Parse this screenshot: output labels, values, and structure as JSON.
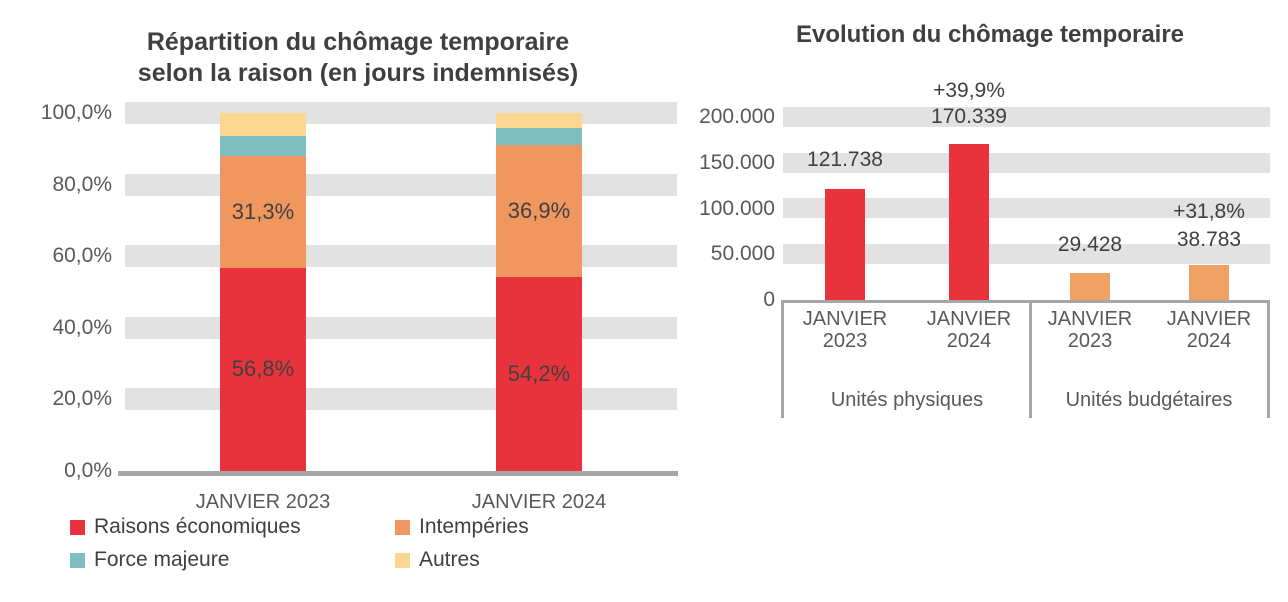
{
  "colors": {
    "red": "#E8323C",
    "orange": "#F0965F",
    "teal": "#7FBEBE",
    "yellow": "#FCD78F",
    "right_orange": "#F0A264",
    "grid_band": "#E2E2E2",
    "axis_gray": "#A6A6A6",
    "title_text": "#3F3F3F",
    "tick_text": "#595959"
  },
  "left_chart": {
    "title_line1": "Répartition du chômage temporaire",
    "title_line2": "selon la raison (en jours indemnisés)",
    "y_ticks": [
      "100,0%",
      "80,0%",
      "60,0%",
      "40,0%",
      "20,0%",
      "0,0%"
    ],
    "x_labels": [
      "JANVIER 2023",
      "JANVIER 2024"
    ],
    "bar_labels": [
      [
        "56,8%",
        "31,3%"
      ],
      [
        "54,2%",
        "36,9%"
      ]
    ],
    "legend": [
      {
        "label": "Raisons économiques",
        "color": "#E8323C"
      },
      {
        "label": "Intempéries",
        "color": "#F0965F"
      },
      {
        "label": "Force majeure",
        "color": "#7FBEBE"
      },
      {
        "label": "Autres",
        "color": "#FCD78F"
      }
    ]
  },
  "right_chart": {
    "title": "Evolution du chômage temporaire",
    "y_ticks": [
      "200.000",
      "150.000",
      "100.000",
      "50.000",
      "0"
    ],
    "labels": {
      "value_2023_phys": "121.738",
      "pct_phys": "+39,9%",
      "value_2024_phys": "170.339",
      "value_2023_budg": "29.428",
      "pct_budg": "+31,8%",
      "value_2024_budg": "38.783"
    },
    "cats": [
      "JANVIER 2023",
      "JANVIER 2024",
      "JANVIER 2023",
      "JANVIER 2024"
    ],
    "group_labels": [
      "Unités physiques",
      "Unités budgétaires"
    ]
  },
  "chart_data": [
    {
      "type": "bar",
      "subtype": "stacked-100-percent",
      "title": "Répartition du chômage temporaire selon la raison (en jours indemnisés)",
      "categories": [
        "JANVIER 2023",
        "JANVIER 2024"
      ],
      "series": [
        {
          "name": "Raisons économiques",
          "color": "#E8323C",
          "values": [
            56.8,
            54.2
          ]
        },
        {
          "name": "Intempéries",
          "color": "#F0965F",
          "values": [
            31.3,
            36.9
          ]
        },
        {
          "name": "Force majeure",
          "color": "#7FBEBE",
          "values": [
            5.5,
            4.8
          ]
        },
        {
          "name": "Autres",
          "color": "#FCD78F",
          "values": [
            6.4,
            4.1
          ]
        }
      ],
      "shown_data_labels": [
        [
          "56,8%",
          "31,3%"
        ],
        [
          "54,2%",
          "36,9%"
        ]
      ],
      "ylim": [
        0,
        100
      ],
      "y_tick_step": 20,
      "y_format": "percent",
      "legend_position": "bottom",
      "grid": "horizontal-bands"
    },
    {
      "type": "bar",
      "title": "Evolution du chômage temporaire",
      "groups": [
        {
          "label": "Unités physiques",
          "categories": [
            "JANVIER 2023",
            "JANVIER 2024"
          ],
          "values": [
            121738,
            170339
          ],
          "color": "#E8323C",
          "change_label": "+39,9%"
        },
        {
          "label": "Unités budgétaires",
          "categories": [
            "JANVIER 2023",
            "JANVIER 2024"
          ],
          "values": [
            29428,
            38783
          ],
          "color": "#F0A264",
          "change_label": "+31,8%"
        }
      ],
      "ylim": [
        0,
        200000
      ],
      "y_ticks": [
        0,
        50000,
        100000,
        150000,
        200000
      ],
      "grid": "horizontal-bands",
      "legend_position": "none"
    }
  ]
}
